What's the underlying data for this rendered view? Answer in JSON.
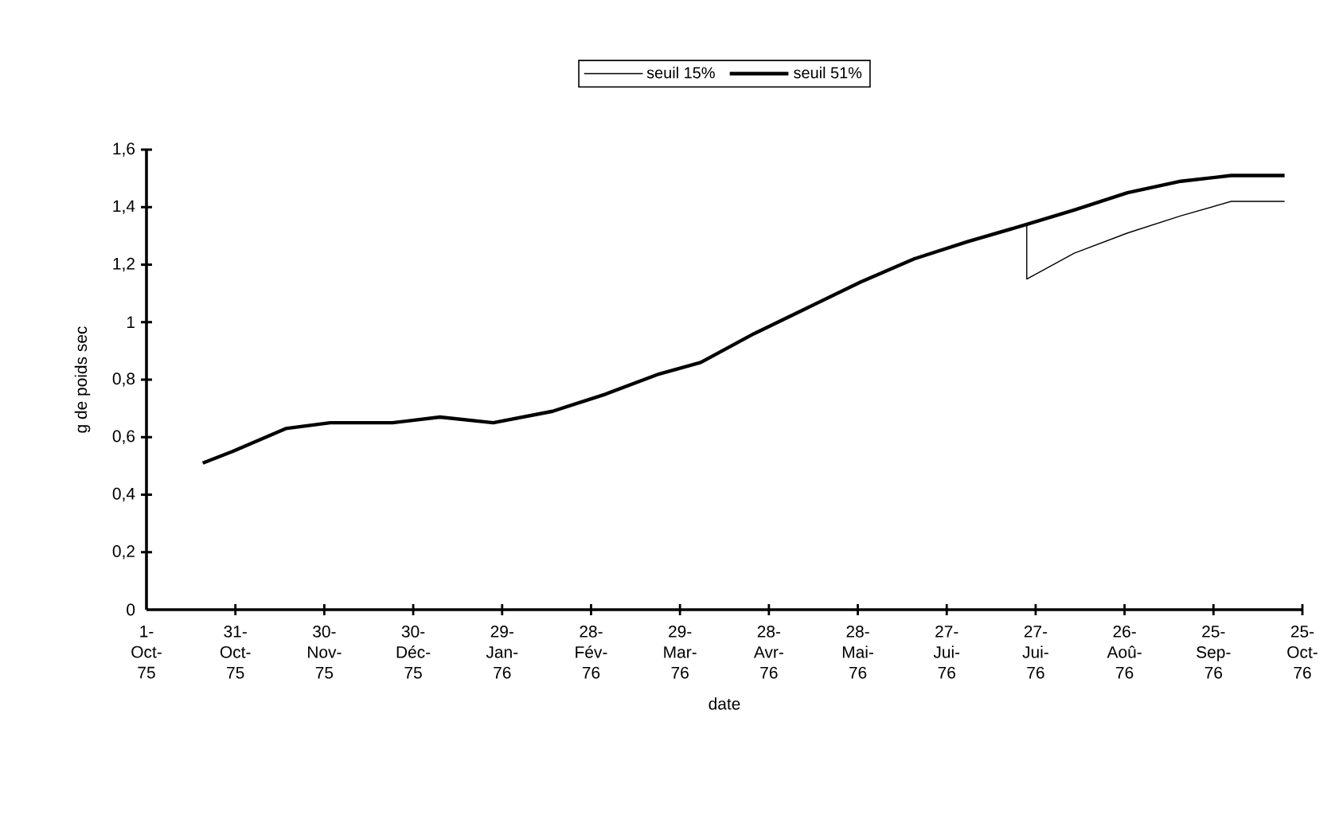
{
  "chart_data": {
    "type": "line",
    "xlabel": "date",
    "ylabel": "g de poids sec",
    "legend": "top",
    "xlim": [
      "1975-10-01",
      "1976-10-25"
    ],
    "xticks": [
      {
        "value": "1975-10-01",
        "label": "1-Oct-75"
      },
      {
        "value": "1975-10-31",
        "label": "31-Oct-75"
      },
      {
        "value": "1975-11-30",
        "label": "30-Nov-75"
      },
      {
        "value": "1975-12-30",
        "label": "30-Déc-75"
      },
      {
        "value": "1976-01-29",
        "label": "29-Jan-76"
      },
      {
        "value": "1976-02-28",
        "label": "28-Fév-76"
      },
      {
        "value": "1976-03-29",
        "label": "29-Mar-76"
      },
      {
        "value": "1976-04-28",
        "label": "28-Avr-76"
      },
      {
        "value": "1976-05-28",
        "label": "28-Mai-76"
      },
      {
        "value": "1976-06-27",
        "label": "27-Jui-76"
      },
      {
        "value": "1976-07-27",
        "label": "27-Jui-76"
      },
      {
        "value": "1976-08-26",
        "label": "26-Aoû-76"
      },
      {
        "value": "1976-09-25",
        "label": "25-Sep-76"
      },
      {
        "value": "1976-10-25",
        "label": "25-Oct-76"
      }
    ],
    "ylim": [
      0,
      1.6
    ],
    "yticks": [
      0,
      {
        "value": 0.2,
        "label": "0,2"
      },
      {
        "value": 0.4,
        "label": "0,4"
      },
      {
        "value": 0.6,
        "label": "0,6"
      },
      {
        "value": 0.8,
        "label": "0,8"
      },
      1,
      {
        "value": 1.2,
        "label": "1,2"
      },
      {
        "value": 1.4,
        "label": "1,4"
      },
      {
        "value": 1.6,
        "label": "1,6"
      }
    ],
    "series": [
      {
        "name": "seuil 15%",
        "color": "#000000",
        "x": [
          "1975-10-20",
          "1975-10-30",
          "1975-11-17",
          "1975-12-02",
          "1975-12-23",
          "1976-01-08",
          "1976-01-26",
          "1976-02-15",
          "1976-03-04",
          "1976-03-22",
          "1976-04-05",
          "1976-04-23",
          "1976-05-11",
          "1976-05-29",
          "1976-06-16",
          "1976-07-04",
          "1976-07-24",
          "1976-07-24",
          "1976-08-09",
          "1976-08-27",
          "1976-09-14",
          "1976-10-01",
          "1976-10-19"
        ],
        "values": [
          0.51,
          0.55,
          0.63,
          0.65,
          0.65,
          0.67,
          0.65,
          0.69,
          0.75,
          0.82,
          0.86,
          0.96,
          1.05,
          1.14,
          1.22,
          1.28,
          1.34,
          1.15,
          1.24,
          1.31,
          1.37,
          1.42,
          1.42
        ]
      },
      {
        "name": "seuil 51%",
        "color": "#000000",
        "x": [
          "1975-10-20",
          "1975-10-30",
          "1975-11-17",
          "1975-12-02",
          "1975-12-23",
          "1976-01-08",
          "1976-01-26",
          "1976-02-15",
          "1976-03-04",
          "1976-03-22",
          "1976-04-05",
          "1976-04-23",
          "1976-05-11",
          "1976-05-29",
          "1976-06-16",
          "1976-07-04",
          "1976-07-24",
          "1976-08-09",
          "1976-08-27",
          "1976-09-14",
          "1976-10-01",
          "1976-10-19"
        ],
        "values": [
          0.51,
          0.55,
          0.63,
          0.65,
          0.65,
          0.67,
          0.65,
          0.69,
          0.75,
          0.82,
          0.86,
          0.96,
          1.05,
          1.14,
          1.22,
          1.28,
          1.34,
          1.39,
          1.45,
          1.49,
          1.51,
          1.51
        ]
      }
    ]
  }
}
